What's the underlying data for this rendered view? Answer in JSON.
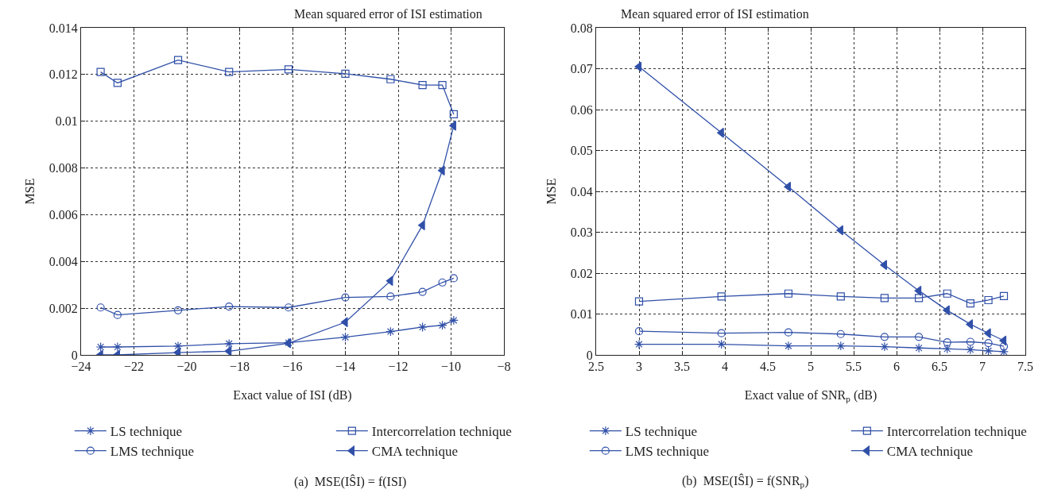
{
  "chart_data": [
    {
      "type": "line",
      "title": "Mean squared error of ISI estimation",
      "xlabel": "Exact value of ISI (dB)",
      "ylabel": "MSE",
      "xlim": [
        -24,
        -8
      ],
      "xticks": [
        -24,
        -22,
        -20,
        -18,
        -16,
        -14,
        -12,
        -10,
        -8
      ],
      "ylim": [
        0,
        0.014
      ],
      "yticks": [
        0,
        0.002,
        0.004,
        0.006,
        0.008,
        0.01,
        0.012,
        0.014
      ],
      "x": [
        -23.26,
        -22.62,
        -20.33,
        -18.4,
        -16.15,
        -14.0,
        -12.29,
        -11.08,
        -10.33,
        -9.9
      ],
      "series": [
        {
          "name": "LS technique",
          "color": "#3050a8",
          "marker": "cross",
          "values": [
            0.00034,
            0.00034,
            0.00038,
            0.00048,
            0.00052,
            0.00076,
            0.001,
            0.00119,
            0.00127,
            0.00148
          ]
        },
        {
          "name": "Intercorrelation technique",
          "color": "#3050a8",
          "marker": "square",
          "values": [
            0.01211,
            0.01164,
            0.01262,
            0.01211,
            0.01222,
            0.01203,
            0.0118,
            0.01155,
            0.01155,
            0.0103
          ]
        },
        {
          "name": "LMS technique",
          "color": "#3050a8",
          "marker": "circle",
          "values": [
            0.00203,
            0.00171,
            0.00191,
            0.00207,
            0.00203,
            0.00246,
            0.0025,
            0.0027,
            0.0031,
            0.00328
          ]
        },
        {
          "name": "CMA technique",
          "color": "#3050a8",
          "marker": "triangle",
          "values": [
            0,
            0,
            0.0001,
            0.00016,
            0.0005,
            0.0014,
            0.00317,
            0.00555,
            0.00789,
            0.00981
          ]
        }
      ],
      "grid": true,
      "legend": "bottom",
      "annotations": [
        "(a)  MSE(IŜI) = f(ISI)"
      ]
    },
    {
      "type": "line",
      "title": "Mean squared error of ISI estimation",
      "xlabel": "Exact value of SNR$_{p}$ (dB)",
      "ylabel": "MSE",
      "xlim": [
        2.5,
        7.5
      ],
      "xticks": [
        2.5,
        3,
        3.5,
        4,
        4.5,
        5,
        5.5,
        6,
        6.5,
        7,
        7.5
      ],
      "ylim": [
        0,
        0.08
      ],
      "yticks": [
        0,
        0.01,
        0.02,
        0.03,
        0.04,
        0.05,
        0.06,
        0.07,
        0.08
      ],
      "x": [
        3.0,
        3.96,
        4.74,
        5.35,
        5.86,
        6.26,
        6.59,
        6.86,
        7.07,
        7.25
      ],
      "series": [
        {
          "name": "LS technique",
          "color": "#3050a8",
          "marker": "cross",
          "values": [
            0.0026,
            0.0026,
            0.0022,
            0.0022,
            0.002,
            0.0017,
            0.0015,
            0.0013,
            0.001,
            0.0008
          ]
        },
        {
          "name": "Intercorrelation technique",
          "color": "#3050a8",
          "marker": "square",
          "values": [
            0.0131,
            0.0143,
            0.015,
            0.0143,
            0.0139,
            0.0139,
            0.015,
            0.0126,
            0.0134,
            0.0144
          ]
        },
        {
          "name": "LMS technique",
          "color": "#3050a8",
          "marker": "circle",
          "values": [
            0.0058,
            0.0053,
            0.0055,
            0.0051,
            0.0044,
            0.0044,
            0.0031,
            0.0032,
            0.0029,
            0.0021
          ]
        },
        {
          "name": "CMA technique",
          "color": "#3050a8",
          "marker": "triangle",
          "values": [
            0.0705,
            0.0543,
            0.0411,
            0.0305,
            0.022,
            0.0157,
            0.0109,
            0.0075,
            0.0053,
            0.0035
          ]
        }
      ],
      "grid": true,
      "legend": "bottom",
      "annotations": [
        "(b)  MSE(IŜI) = f(SNR$_{p}$)"
      ]
    }
  ]
}
